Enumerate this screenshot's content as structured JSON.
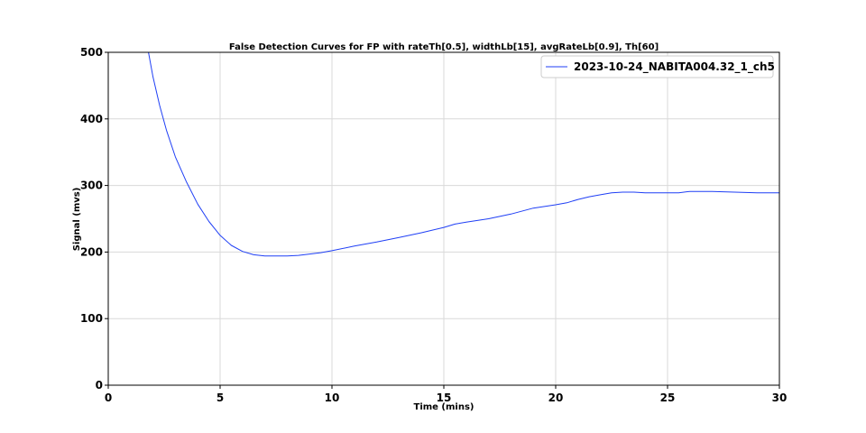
{
  "chart_data": {
    "type": "line",
    "title": "False Detection Curves for FP with rateTh[0.5], widthLb[15], avgRateLb[0.9], Th[60]",
    "xlabel": "Time (mins)",
    "ylabel": "Signal (mvs)",
    "xlim": [
      0,
      30
    ],
    "ylim": [
      0,
      500
    ],
    "xticks": [
      0,
      5,
      10,
      15,
      20,
      25,
      30
    ],
    "yticks": [
      0,
      100,
      200,
      300,
      400,
      500
    ],
    "grid": true,
    "legend_position": "top-right",
    "series": [
      {
        "name": "2023-10-24_NABITA004.32_1_ch5",
        "color": "#1f3ff5",
        "x": [
          1.8,
          2.0,
          2.3,
          2.6,
          3.0,
          3.5,
          4.0,
          4.5,
          5.0,
          5.5,
          6.0,
          6.5,
          7.0,
          7.5,
          8.0,
          8.5,
          9.0,
          9.5,
          10.0,
          11.0,
          12.0,
          13.0,
          14.0,
          15.0,
          15.5,
          16.0,
          17.0,
          18.0,
          19.0,
          20.0,
          20.5,
          21.0,
          21.5,
          22.0,
          22.5,
          23.0,
          23.5,
          24.0,
          24.5,
          25.0,
          25.5,
          26.0,
          26.5,
          27.0,
          28.0,
          29.0,
          30.0
        ],
        "values": [
          500,
          463,
          420,
          383,
          343,
          305,
          272,
          246,
          225,
          210,
          201,
          196,
          194,
          194,
          194,
          195,
          197,
          199,
          202,
          209,
          215,
          222,
          229,
          237,
          242,
          245,
          250,
          257,
          266,
          271,
          274,
          279,
          283,
          286,
          289,
          290,
          290,
          289,
          289,
          289,
          289,
          291,
          291,
          291,
          290,
          289,
          289
        ]
      }
    ]
  }
}
